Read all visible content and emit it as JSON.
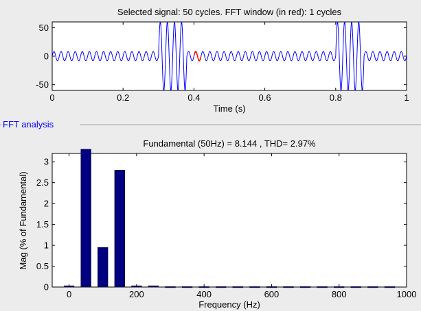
{
  "chart_data": [
    {
      "type": "line",
      "title": "Selected signal: 50 cycles. FFT window (in red): 1 cycles",
      "xlabel": "Time (s)",
      "ylabel": "",
      "xlim": [
        0,
        1
      ],
      "ylim": [
        -60,
        60
      ],
      "xticks": [
        0,
        0.2,
        0.4,
        0.6,
        0.8,
        1
      ],
      "xtick_labels": [
        "0",
        "0.2",
        "0.4",
        "0.6",
        "0.8",
        "1"
      ],
      "yticks": [
        -50,
        0,
        50
      ],
      "ytick_labels": [
        "-50",
        "0",
        "50"
      ],
      "signal": {
        "frequency_hz": 50,
        "base_amplitude": 8.144,
        "burst_amplitude": 60,
        "bursts": [
          [
            0.3,
            0.38
          ],
          [
            0.8,
            0.88
          ]
        ]
      },
      "series": [
        {
          "color": "#0000ff",
          "x_range": [
            0,
            1
          ]
        },
        {
          "color": "#ff0000",
          "x_range": [
            0.4,
            0.42
          ]
        }
      ]
    },
    {
      "type": "bar",
      "title": "Fundamental (50Hz) = 8.144 , THD= 2.97%",
      "xlabel": "Frequency (Hz)",
      "ylabel": "Mag (% of Fundamental)",
      "xlim": [
        -50,
        1000
      ],
      "ylim": [
        0,
        3.2
      ],
      "xticks": [
        0,
        200,
        400,
        600,
        800,
        1000
      ],
      "xtick_labels": [
        "0",
        "200",
        "400",
        "600",
        "800",
        "1000"
      ],
      "yticks": [
        0,
        0.5,
        1,
        1.5,
        2,
        2.5,
        3
      ],
      "ytick_labels": [
        "0",
        "0.5",
        "1",
        "1.5",
        "2",
        "2.5",
        "3"
      ],
      "bar_color": "#000080",
      "x": [
        0,
        50,
        100,
        150,
        200,
        250,
        300,
        350,
        400,
        450,
        500,
        550,
        600,
        650,
        700,
        750,
        800,
        850,
        900,
        950
      ],
      "values": [
        0.03,
        3.3,
        0.95,
        2.8,
        0.03,
        0.03,
        0.01,
        0.01,
        0.01,
        0.01,
        0.01,
        0.01,
        0.01,
        0.01,
        0.01,
        0.01,
        0.01,
        0.01,
        0.01,
        0.01
      ]
    }
  ],
  "panel": {
    "title": "FFT analysis"
  },
  "colors": {
    "background": "#ececec",
    "axes_background": "#ffffff",
    "panel_title": "#0000ff",
    "panel_border": "#a0a0a0"
  }
}
